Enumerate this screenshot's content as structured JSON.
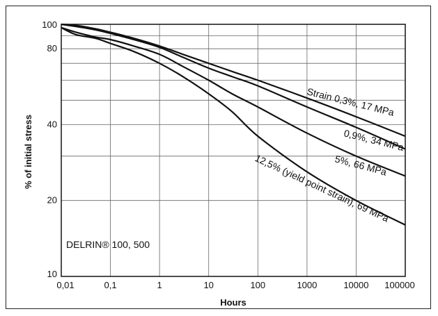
{
  "chart_data": {
    "type": "line",
    "xlabel": "Hours",
    "ylabel": "% of initial stress",
    "x_scale": "log",
    "y_scale": "log",
    "xlim": [
      0.01,
      100000
    ],
    "ylim": [
      10,
      100
    ],
    "x_ticks": [
      "0,01",
      "0,1",
      "1",
      "10",
      "100",
      "1000",
      "10000",
      "100000"
    ],
    "y_ticks": [
      "10",
      "20",
      "40",
      "80",
      "100"
    ],
    "annotation": "DELRIN® 100, 500",
    "grid": true,
    "series": [
      {
        "name": "Strain 0,3%, 17 MPa",
        "x": [
          0.01,
          0.02,
          0.05,
          0.1,
          0.3,
          1,
          3,
          10,
          30,
          100,
          1000,
          10000,
          100000
        ],
        "y": [
          100,
          99,
          96,
          93,
          88,
          82,
          76,
          70,
          65,
          60,
          51,
          43,
          36
        ]
      },
      {
        "name": "0,9%, 34 MPa",
        "x": [
          0.01,
          0.02,
          0.05,
          0.1,
          0.3,
          1,
          3,
          10,
          30,
          100,
          1000,
          10000,
          100000
        ],
        "y": [
          100,
          98,
          95,
          92,
          87,
          81,
          74,
          67,
          62,
          57,
          47,
          39,
          32
        ]
      },
      {
        "name": "5%, 66 MPa",
        "x": [
          0.01,
          0.02,
          0.05,
          0.1,
          0.3,
          1,
          3,
          10,
          30,
          100,
          1000,
          10000,
          100000
        ],
        "y": [
          97,
          93,
          89,
          87,
          82,
          76,
          68,
          60,
          53,
          47,
          37,
          30,
          25
        ]
      },
      {
        "name": "12,5% (yield point strain), 69 MPa",
        "x": [
          0.01,
          0.02,
          0.05,
          0.1,
          0.3,
          1,
          3,
          10,
          30,
          100,
          1000,
          10000,
          100000
        ],
        "y": [
          97,
          91,
          88,
          84,
          78,
          70,
          62,
          53,
          45,
          36,
          26,
          20,
          16
        ]
      }
    ]
  }
}
